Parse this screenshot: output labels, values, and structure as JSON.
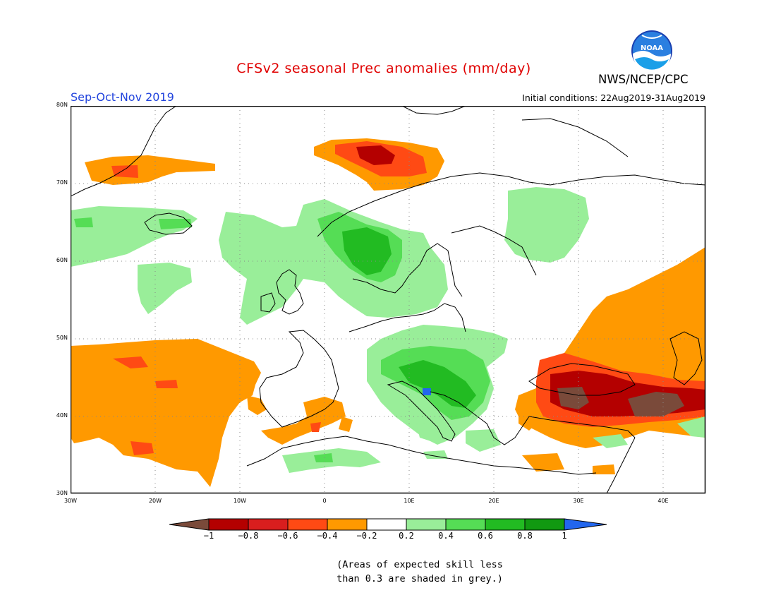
{
  "title": "CFSv2 seasonal Prec anomalies (mm/day)",
  "season": "Sep-Oct-Nov 2019",
  "initial_conditions": "Initial conditions: 22Aug2019-31Aug2019",
  "org": "NWS/NCEP/CPC",
  "logo_text": "NOAA",
  "latitude_labels": [
    "80N",
    "70N",
    "60N",
    "50N",
    "40N",
    "30N"
  ],
  "longitude_labels": [
    "30W",
    "20W",
    "10W",
    "0",
    "10E",
    "20E",
    "30E",
    "40E"
  ],
  "colorbar": {
    "labels": [
      "−1",
      "−0.8",
      "−0.6",
      "−0.4",
      "−0.2",
      "0.2",
      "0.4",
      "0.6",
      "0.8",
      "1"
    ],
    "colors": [
      "#7a4a3a",
      "#b40000",
      "#d91e1e",
      "#ff4a14",
      "#ff9900",
      "#ffffff",
      "#99ee99",
      "#55dd55",
      "#22bb22",
      "#119911",
      "#2266ee"
    ]
  },
  "note_line1": "(Areas of expected skill less",
  "note_line2": "than 0.3 are shaded in grey.)",
  "map_extent": {
    "lon_min": -30,
    "lon_max": 45,
    "lat_min": 30,
    "lat_max": 80
  },
  "anomaly_regions": [
    {
      "name": "north-atlantic-dry",
      "value": -0.3,
      "color": "#ff9900"
    },
    {
      "name": "subtropical-atlantic-dry",
      "value": -0.4,
      "color": "#ff9900"
    },
    {
      "name": "greenland-east-dry",
      "value": -0.3,
      "color": "#ff9900"
    },
    {
      "name": "svalbard-sea-dry",
      "value": -0.6,
      "color": "#ff4a14"
    },
    {
      "name": "svalbard-sea-core-dry",
      "value": -0.8,
      "color": "#b40000"
    },
    {
      "name": "iceland-wet",
      "value": 0.3,
      "color": "#99ee99"
    },
    {
      "name": "norway-wet",
      "value": 0.5,
      "color": "#55dd55"
    },
    {
      "name": "norway-core-wet",
      "value": 0.7,
      "color": "#22bb22"
    },
    {
      "name": "finland-wet",
      "value": 0.3,
      "color": "#99ee99"
    },
    {
      "name": "central-europe-wet",
      "value": 0.3,
      "color": "#99ee99"
    },
    {
      "name": "alps-balkans-wet",
      "value": 0.6,
      "color": "#22bb22"
    },
    {
      "name": "adriatic-max-wet",
      "value": 1.0,
      "color": "#2266ee"
    },
    {
      "name": "iberia-dry",
      "value": -0.3,
      "color": "#ff9900"
    },
    {
      "name": "black-sea-dry",
      "value": -0.6,
      "color": "#ff4a14"
    },
    {
      "name": "anatolia-core-dry",
      "value": -1.0,
      "color": "#7a4a3a"
    },
    {
      "name": "russia-east-dry",
      "value": -0.3,
      "color": "#ff9900"
    },
    {
      "name": "north-africa-wet",
      "value": 0.3,
      "color": "#99ee99"
    }
  ]
}
